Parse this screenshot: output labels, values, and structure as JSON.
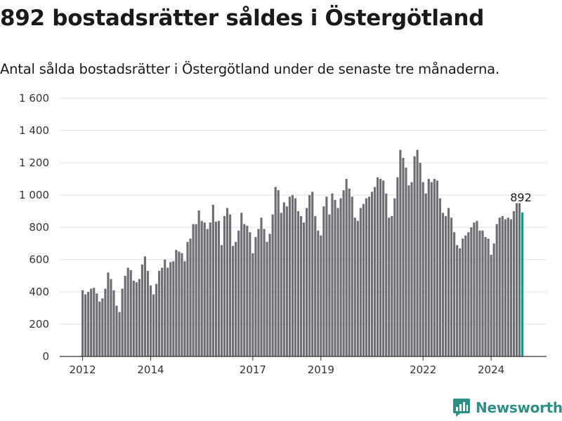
{
  "header": {
    "title": "892 bostadsrätter såldes i Östergötland",
    "subtitle": "Antal sålda bostadsrätter i Östergötland under de senaste tre månaderna."
  },
  "brand": {
    "name": "Newsworthy"
  },
  "colors": {
    "bar": "#6e6d73",
    "highlight": "#15958b",
    "grid": "#dddddd",
    "axis": "#333333"
  },
  "chart_data": {
    "type": "bar",
    "title": "892 bostadsrätter såldes i Östergötland",
    "subtitle": "Antal sålda bostadsrätter i Östergötland under de senaste tre månaderna.",
    "xlabel": "",
    "ylabel": "",
    "ylim": [
      0,
      1600
    ],
    "yticks": [
      0,
      200,
      400,
      600,
      800,
      1000,
      1200,
      1400,
      1600
    ],
    "ytick_labels": [
      "0",
      "200",
      "400",
      "600",
      "800",
      "1 000",
      "1 200",
      "1 400",
      "1 600"
    ],
    "grid": true,
    "x_start": "2012-01",
    "x_end": "2024-12",
    "xticks": [
      "2012",
      "2014",
      "2017",
      "2019",
      "2022",
      "2024"
    ],
    "highlight_label": "892",
    "series": [
      {
        "values": [
          410,
          385,
          400,
          420,
          425,
          390,
          340,
          360,
          420,
          520,
          480,
          410,
          315,
          275,
          420,
          500,
          550,
          535,
          470,
          460,
          480,
          570,
          620,
          530,
          440,
          385,
          450,
          530,
          550,
          600,
          550,
          585,
          590,
          660,
          650,
          640,
          590,
          710,
          730,
          820,
          820,
          905,
          840,
          830,
          790,
          830,
          940,
          835,
          840,
          690,
          870,
          920,
          880,
          685,
          710,
          780,
          890,
          820,
          810,
          770,
          640,
          740,
          790,
          860,
          790,
          710,
          760,
          880,
          1050,
          1030,
          890,
          955,
          930,
          990,
          1000,
          980,
          900,
          870,
          830,
          920,
          1000,
          1020,
          870,
          780,
          750,
          930,
          990,
          880,
          1010,
          970,
          920,
          980,
          1030,
          1100,
          1040,
          990,
          860,
          840,
          920,
          945,
          980,
          990,
          1020,
          1050,
          1110,
          1100,
          1090,
          1010,
          860,
          870,
          980,
          1110,
          1280,
          1230,
          1170,
          1060,
          1080,
          1240,
          1280,
          1200,
          1080,
          1010,
          1100,
          1080,
          1100,
          1090,
          980,
          890,
          870,
          920,
          860,
          770,
          690,
          670,
          730,
          750,
          770,
          800,
          830,
          840,
          780,
          780,
          740,
          730,
          630,
          700,
          820,
          860,
          870,
          850,
          860,
          850,
          900,
          950,
          950,
          892
        ]
      }
    ]
  }
}
